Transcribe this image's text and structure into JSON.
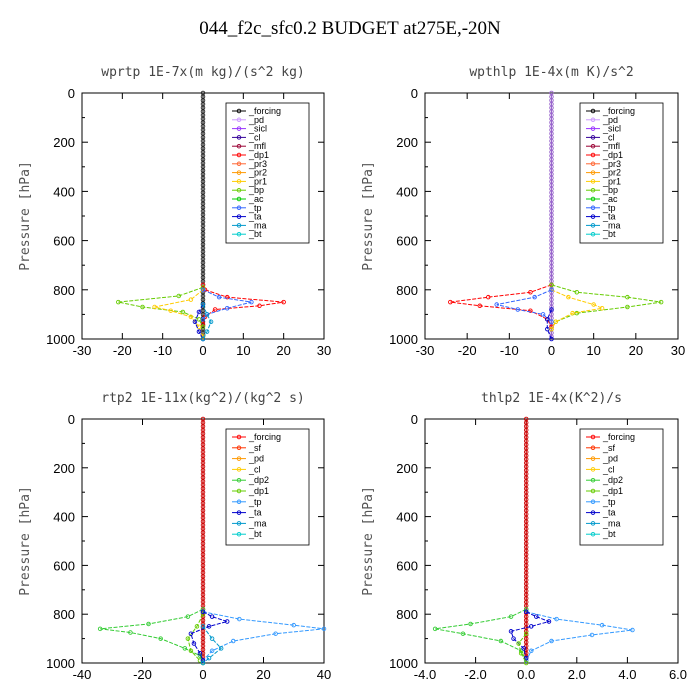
{
  "title": "044_f2c_sfc0.2  BUDGET at275E,-20N",
  "chart_data": [
    {
      "type": "line",
      "title": "wprtp  1E-7x(m kg)/(s^2 kg)",
      "ylabel": "Pressure [hPa]",
      "xlim": [
        -30,
        30
      ],
      "ylim": [
        1000,
        0
      ],
      "xticks": [
        "-30",
        "-20",
        "-10",
        "0",
        "10",
        "20",
        "30"
      ],
      "yticks": [
        "0",
        "200",
        "400",
        "600",
        "800",
        "1000"
      ],
      "legend": [
        "_forcing",
        "_pd",
        "_sicl",
        "_cl",
        "_mfl",
        "_dp1",
        "_pr3",
        "_pr2",
        "_pr1",
        "_bp",
        "_ac",
        "_tp",
        "_ta",
        "_ma",
        "_bt"
      ],
      "colors": [
        "#000000",
        "#cc99ff",
        "#9933ff",
        "#330099",
        "#990033",
        "#ff0000",
        "#ff6633",
        "#ff9900",
        "#ffcc00",
        "#66cc00",
        "#00cc00",
        "#3366ff",
        "#0000cc",
        "#0099cc",
        "#00cccc"
      ],
      "series": [
        {
          "legend_index": 5,
          "points": [
            [
              0,
              780
            ],
            [
              0.5,
              800
            ],
            [
              6,
              830
            ],
            [
              20,
              850
            ],
            [
              14,
              865
            ],
            [
              3,
              880
            ],
            [
              0.5,
              910
            ],
            [
              0,
              940
            ]
          ]
        },
        {
          "legend_index": 9,
          "points": [
            [
              0,
              790
            ],
            [
              -6,
              825
            ],
            [
              -21,
              850
            ],
            [
              -15,
              870
            ],
            [
              -5,
              890
            ],
            [
              -1,
              920
            ],
            [
              0,
              950
            ]
          ]
        },
        {
          "legend_index": 8,
          "points": [
            [
              0,
              800
            ],
            [
              -3,
              840
            ],
            [
              -12,
              870
            ],
            [
              -8,
              885
            ],
            [
              -3,
              910
            ],
            [
              -1,
              950
            ],
            [
              0,
              990
            ]
          ]
        },
        {
          "legend_index": 11,
          "points": [
            [
              0,
              800
            ],
            [
              4,
              830
            ],
            [
              12,
              850
            ],
            [
              6,
              875
            ],
            [
              1,
              900
            ],
            [
              0,
              920
            ]
          ]
        },
        {
          "legend_index": 12,
          "points": [
            [
              0,
              860
            ],
            [
              -1,
              890
            ],
            [
              -2,
              930
            ],
            [
              -1,
              970
            ],
            [
              0,
              1000
            ]
          ]
        },
        {
          "legend_index": 13,
          "points": [
            [
              0,
              860
            ],
            [
              1,
              900
            ],
            [
              2,
              930
            ],
            [
              1,
              970
            ],
            [
              0,
              1000
            ]
          ]
        }
      ]
    },
    {
      "type": "line",
      "title": "wpthlp  1E-4x(m K)/s^2",
      "ylabel": "Pressure [hPa]",
      "xlim": [
        -30,
        30
      ],
      "ylim": [
        1000,
        0
      ],
      "xticks": [
        "-30",
        "-20",
        "-10",
        "0",
        "10",
        "20",
        "30"
      ],
      "yticks": [
        "0",
        "200",
        "400",
        "600",
        "800",
        "1000"
      ],
      "legend": [
        "_forcing",
        "_pd",
        "_sicl",
        "_cl",
        "_mfl",
        "_dp1",
        "_pr3",
        "_pr2",
        "_pr1",
        "_bp",
        "_ac",
        "_tp",
        "_ta",
        "_ma",
        "_bt"
      ],
      "colors": [
        "#000000",
        "#cc99ff",
        "#9933ff",
        "#330099",
        "#990033",
        "#ff0000",
        "#ff6633",
        "#ff9900",
        "#ffcc00",
        "#66cc00",
        "#00cc00",
        "#3366ff",
        "#0000cc",
        "#0099cc",
        "#00cccc"
      ],
      "series": [
        {
          "legend_index": 5,
          "points": [
            [
              0,
              780
            ],
            [
              -5,
              810
            ],
            [
              -15,
              830
            ],
            [
              -24,
              850
            ],
            [
              -17,
              865
            ],
            [
              -5,
              885
            ],
            [
              -1,
              920
            ],
            [
              0,
              950
            ]
          ]
        },
        {
          "legend_index": 9,
          "points": [
            [
              0,
              780
            ],
            [
              6,
              810
            ],
            [
              18,
              830
            ],
            [
              26,
              850
            ],
            [
              18,
              870
            ],
            [
              6,
              895
            ],
            [
              1,
              930
            ],
            [
              0,
              960
            ]
          ]
        },
        {
          "legend_index": 8,
          "points": [
            [
              0,
              800
            ],
            [
              4,
              830
            ],
            [
              10,
              860
            ],
            [
              12,
              875
            ],
            [
              5,
              895
            ],
            [
              1,
              930
            ],
            [
              0,
              960
            ]
          ]
        },
        {
          "legend_index": 11,
          "points": [
            [
              0,
              800
            ],
            [
              -4,
              830
            ],
            [
              -13,
              860
            ],
            [
              -8,
              880
            ],
            [
              -2,
              900
            ],
            [
              0,
              930
            ]
          ]
        },
        {
          "legend_index": 12,
          "points": [
            [
              0,
              880
            ],
            [
              -1,
              920
            ],
            [
              -1,
              960
            ],
            [
              0,
              1000
            ]
          ]
        }
      ]
    },
    {
      "type": "line",
      "title": "rtp2  1E-11x(kg^2)/(kg^2 s)",
      "ylabel": "Pressure [hPa]",
      "xlim": [
        -40,
        40
      ],
      "ylim": [
        1000,
        0
      ],
      "xticks": [
        "-40",
        "-20",
        "0",
        "20",
        "40"
      ],
      "yticks": [
        "0",
        "200",
        "400",
        "600",
        "800",
        "1000"
      ],
      "legend": [
        "_forcing",
        "_sf",
        "_pd",
        "_cl",
        "_dp2",
        "_dp1",
        "_tp",
        "_ta",
        "_ma",
        "_bt"
      ],
      "colors": [
        "#ff0000",
        "#ff3300",
        "#ff9900",
        "#ffcc00",
        "#33cc33",
        "#66cc00",
        "#3399ff",
        "#0000cc",
        "#0099cc",
        "#00cccc"
      ],
      "series": [
        {
          "legend_index": 4,
          "points": [
            [
              0,
              780
            ],
            [
              -5,
              810
            ],
            [
              -18,
              840
            ],
            [
              -34,
              860
            ],
            [
              -24,
              875
            ],
            [
              -14,
              900
            ],
            [
              -6,
              940
            ],
            [
              -1,
              970
            ],
            [
              0,
              1000
            ]
          ]
        },
        {
          "legend_index": 5,
          "points": [
            [
              0,
              800
            ],
            [
              -2,
              850
            ],
            [
              -5,
              900
            ],
            [
              -4,
              950
            ],
            [
              -1,
              990
            ]
          ]
        },
        {
          "legend_index": 6,
          "points": [
            [
              0,
              790
            ],
            [
              12,
              820
            ],
            [
              30,
              845
            ],
            [
              40,
              860
            ],
            [
              24,
              880
            ],
            [
              10,
              910
            ],
            [
              3,
              950
            ],
            [
              0,
              990
            ]
          ]
        },
        {
          "legend_index": 7,
          "points": [
            [
              0,
              790
            ],
            [
              3,
              810
            ],
            [
              8,
              830
            ],
            [
              2,
              850
            ],
            [
              -4,
              880
            ],
            [
              -3,
              920
            ],
            [
              -1,
              960
            ],
            [
              0,
              990
            ]
          ]
        },
        {
          "legend_index": 8,
          "points": [
            [
              0,
              850
            ],
            [
              3,
              900
            ],
            [
              6,
              940
            ],
            [
              2,
              980
            ],
            [
              0,
              1000
            ]
          ]
        }
      ]
    },
    {
      "type": "line",
      "title": "thlp2  1E-4x(K^2)/s",
      "ylabel": "Pressure [hPa]",
      "xlim": [
        -4,
        6
      ],
      "ylim": [
        1000,
        0
      ],
      "xticks": [
        "-4.0",
        "-2.0",
        "0.0",
        "2.0",
        "4.0",
        "6.0"
      ],
      "yticks": [
        "0",
        "200",
        "400",
        "600",
        "800",
        "1000"
      ],
      "legend": [
        "_forcing",
        "_sf",
        "_pd",
        "_cl",
        "_dp2",
        "_dp1",
        "_tp",
        "_ta",
        "_ma",
        "_bt"
      ],
      "colors": [
        "#ff0000",
        "#ff3300",
        "#ff9900",
        "#ffcc00",
        "#33cc33",
        "#66cc00",
        "#3399ff",
        "#0000cc",
        "#0099cc",
        "#00cccc"
      ],
      "series": [
        {
          "legend_index": 4,
          "points": [
            [
              0,
              780
            ],
            [
              -0.6,
              810
            ],
            [
              -2.2,
              840
            ],
            [
              -3.6,
              860
            ],
            [
              -2.5,
              880
            ],
            [
              -1,
              910
            ],
            [
              -0.2,
              950
            ],
            [
              0,
              990
            ]
          ]
        },
        {
          "legend_index": 6,
          "points": [
            [
              0,
              790
            ],
            [
              1.2,
              820
            ],
            [
              3,
              845
            ],
            [
              4.2,
              865
            ],
            [
              2.6,
              885
            ],
            [
              1,
              910
            ],
            [
              0.2,
              950
            ],
            [
              0,
              990
            ]
          ]
        },
        {
          "legend_index": 7,
          "points": [
            [
              0,
              790
            ],
            [
              0.4,
              810
            ],
            [
              0.9,
              830
            ],
            [
              0.2,
              850
            ],
            [
              -0.6,
              870
            ],
            [
              -0.5,
              900
            ],
            [
              -0.1,
              940
            ],
            [
              0,
              980
            ]
          ]
        },
        {
          "legend_index": 5,
          "points": [
            [
              0,
              880
            ],
            [
              -0.3,
              920
            ],
            [
              -0.2,
              960
            ],
            [
              0,
              1000
            ]
          ]
        }
      ]
    }
  ]
}
